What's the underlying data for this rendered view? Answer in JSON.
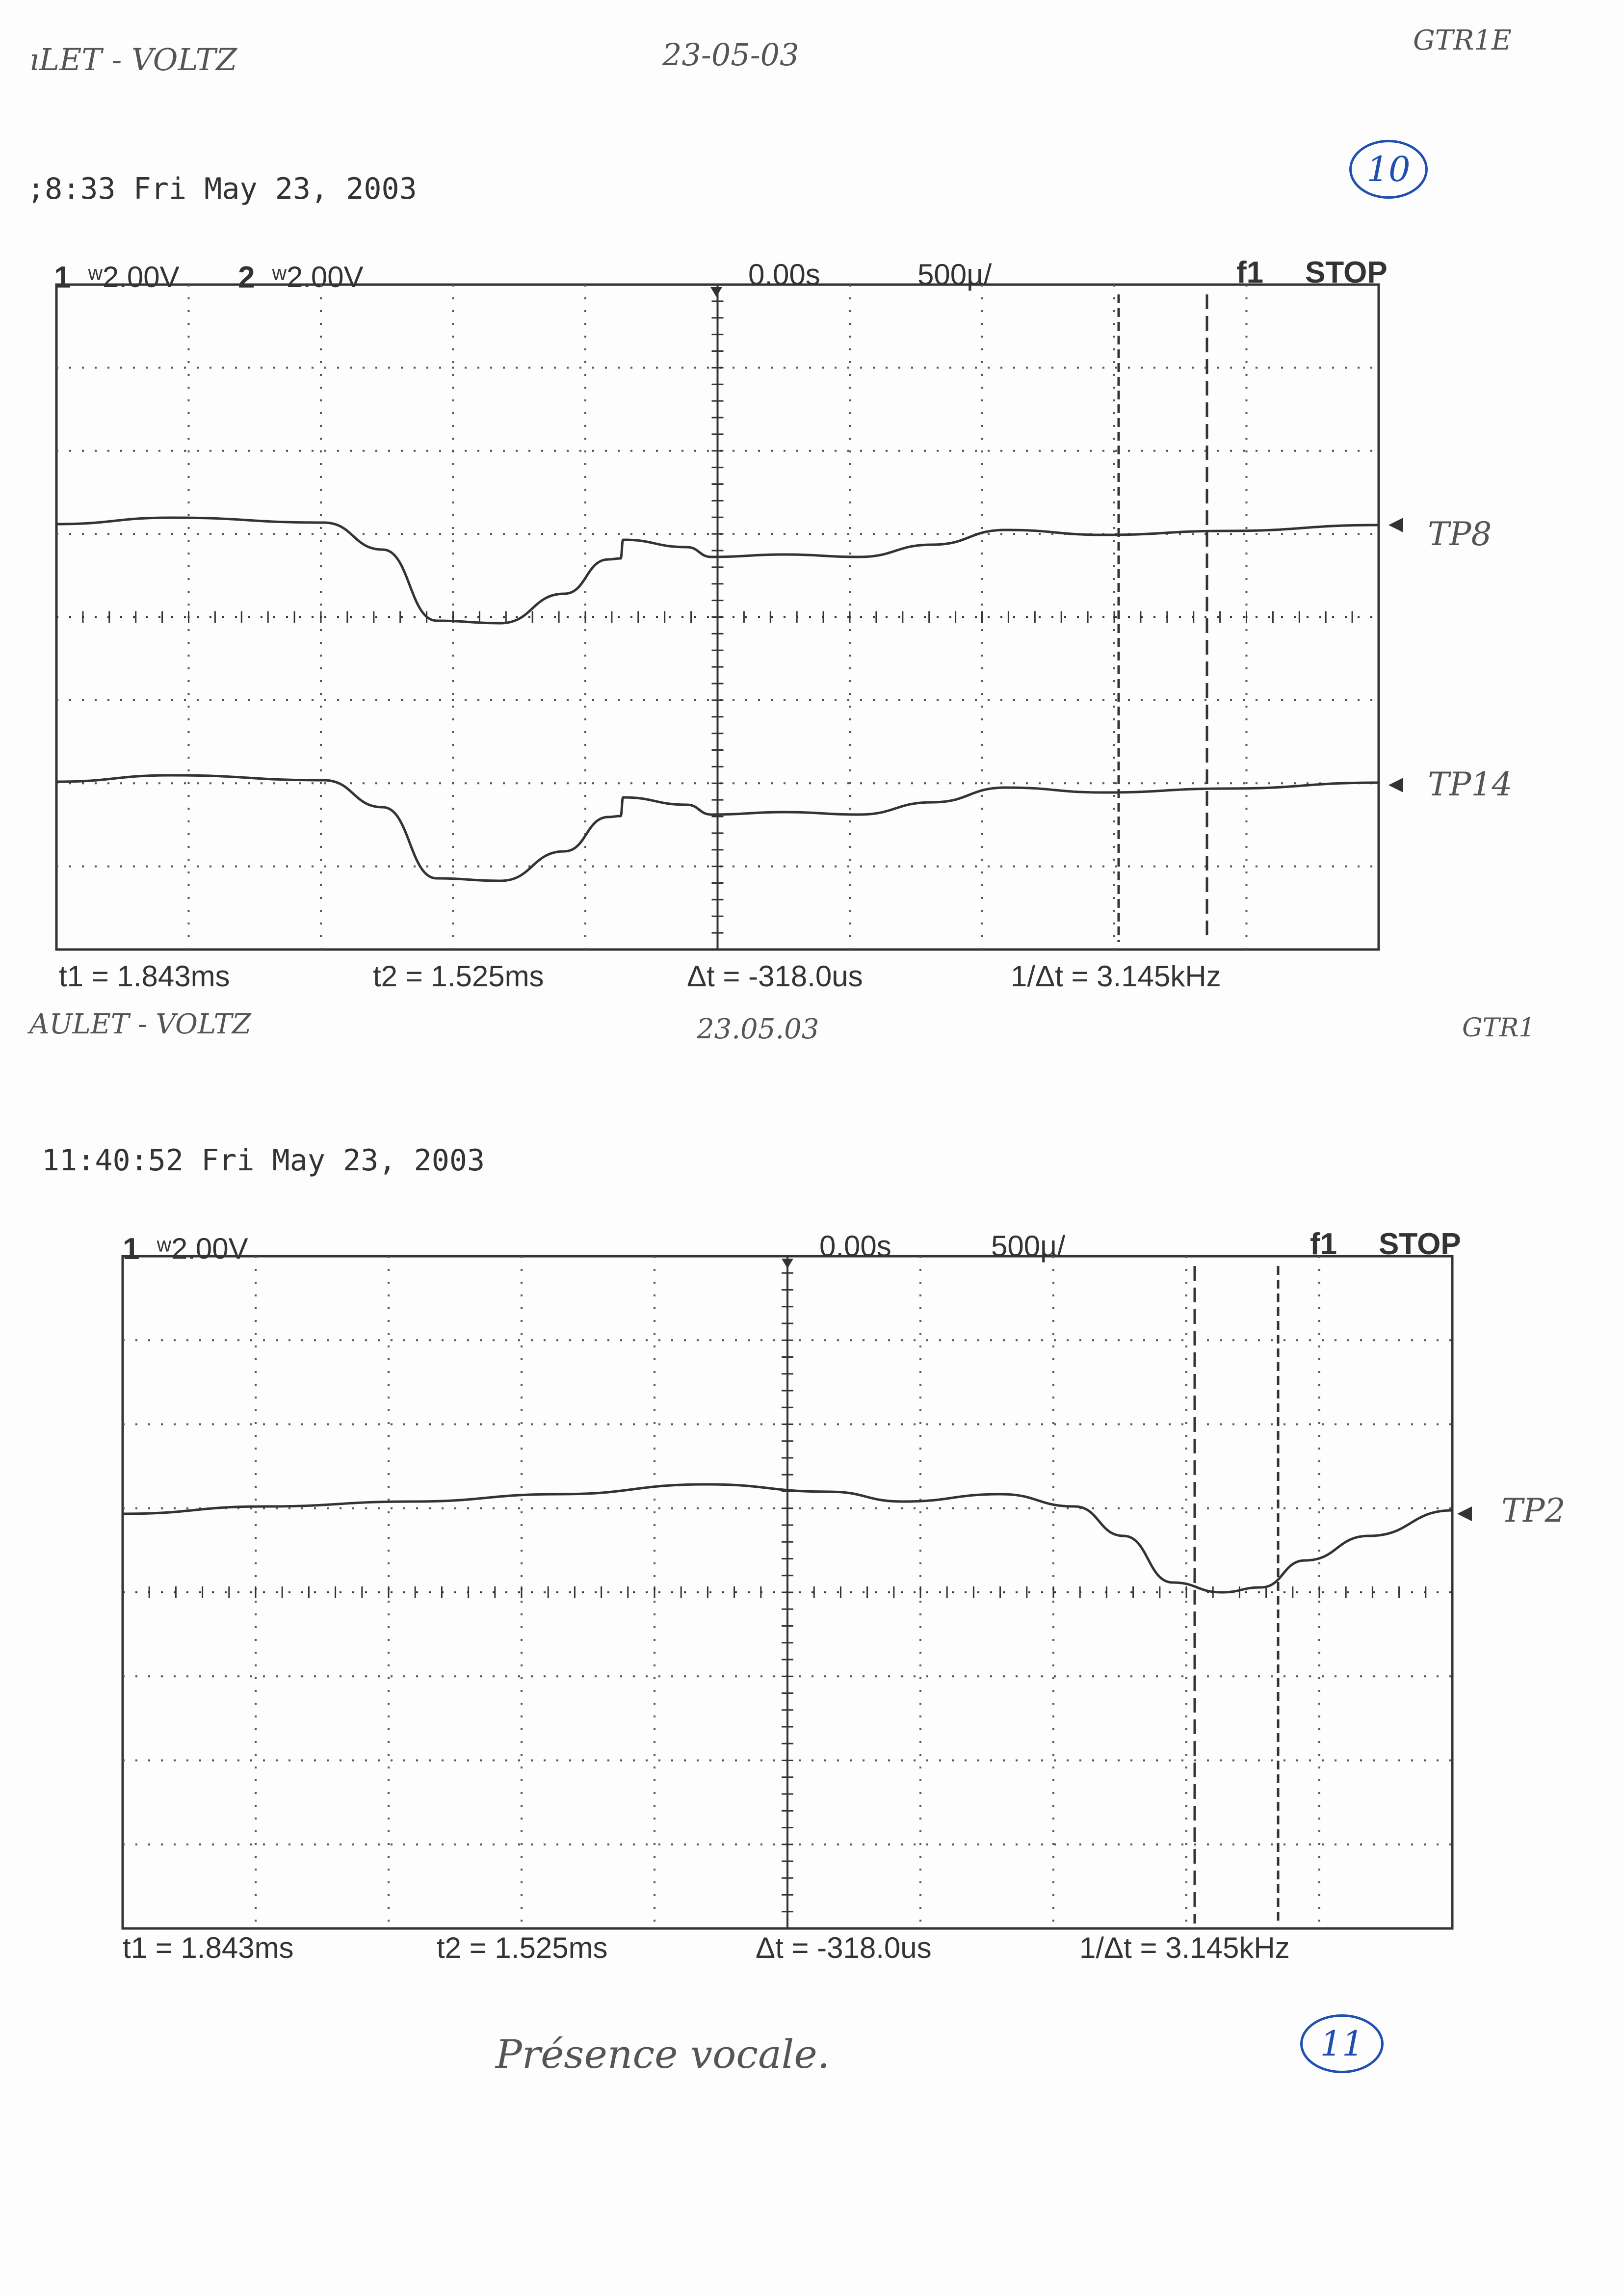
{
  "colors": {
    "ink": "#333333",
    "pen_blue": "#1f4fb0",
    "pencil": "#555555"
  },
  "top_shot": {
    "handwritten_left": "ıLET - VOLTZ",
    "handwritten_center": "23-05-03",
    "handwritten_right": "GTR1E",
    "page_number": "10",
    "timestamp": ";8:33   Fri May 23, 2003",
    "channel1_label": "1",
    "channel1_scale": "ʷ2.00V",
    "channel2_label": "2",
    "channel2_scale": "ʷ2.00V",
    "time_offset": "0.00s",
    "timebase": "500µ/",
    "trigger": "f1",
    "run_state": "STOP",
    "trace1_tag": "TP8",
    "trace2_tag": "TP14",
    "readouts": {
      "t1": "t1 = 1.843ms",
      "t2": "t2 = 1.525ms",
      "dt": "Δt = -318.0us",
      "freq": "1/Δt = 3.145kHz"
    }
  },
  "bottom_shot": {
    "handwritten_left": "AULET - VOLTZ",
    "handwritten_center": "23.05.03",
    "handwritten_right": "GTR1",
    "timestamp": "11:40:52  Fri May 23, 2003",
    "channel1_label": "1",
    "channel1_scale": "ʷ2.00V",
    "time_offset": "0.00s",
    "timebase": "500µ/",
    "trigger": "f1",
    "run_state": "STOP",
    "trace1_tag": "TP2",
    "readouts": {
      "t1": "t1 = 1.843ms",
      "t2": "t2 = 1.525ms",
      "dt": "Δt = -318.0us",
      "freq": "1/Δt = 3.145kHz"
    },
    "note": "Présence vocale.",
    "page_number": "11"
  }
}
